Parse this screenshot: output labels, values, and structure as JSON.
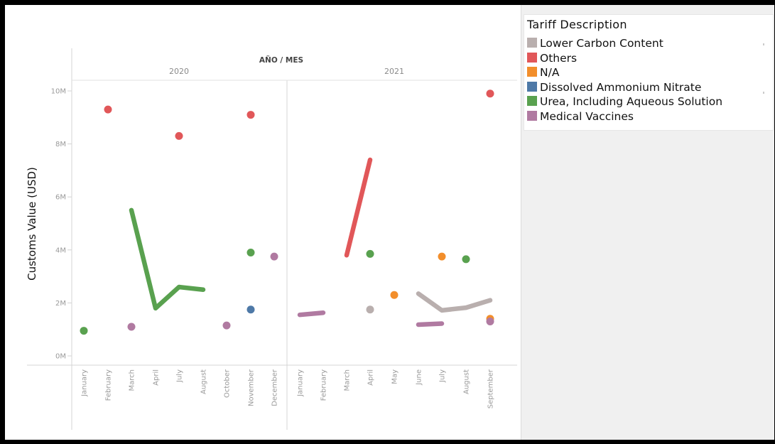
{
  "chart_data": {
    "type": "line",
    "header_label": "AÑO / MES",
    "years": [
      "2020",
      "2021"
    ],
    "categories_2020": [
      "January",
      "February",
      "March",
      "April",
      "July",
      "August",
      "October",
      "November",
      "December"
    ],
    "categories_2021": [
      "January",
      "February",
      "March",
      "April",
      "May",
      "June",
      "July",
      "August",
      "September"
    ],
    "ylabel": "Customs Value (USD)",
    "ylim": [
      0,
      11000000
    ],
    "yticks": [
      0,
      2000000,
      4000000,
      6000000,
      8000000,
      10000000
    ],
    "ytick_labels": [
      "0M",
      "2M",
      "4M",
      "6M",
      "8M",
      "10M"
    ],
    "grid": false,
    "legend_position": "top-right",
    "legend_title": "Tariff Description",
    "series": [
      {
        "name": "Lower Carbon Content",
        "color": "#b9afae",
        "points": [
          {
            "year": "2021",
            "month": "April",
            "value": 1750000
          },
          {
            "year": "2021",
            "month": "June",
            "value": 2350000
          },
          {
            "year": "2021",
            "month": "July",
            "value": 1720000
          },
          {
            "year": "2021",
            "month": "August",
            "value": 1820000
          },
          {
            "year": "2021",
            "month": "September",
            "value": 2100000
          }
        ]
      },
      {
        "name": "Others",
        "color": "#e15759",
        "points": [
          {
            "year": "2020",
            "month": "February",
            "value": 9300000
          },
          {
            "year": "2020",
            "month": "July",
            "value": 8300000
          },
          {
            "year": "2020",
            "month": "November",
            "value": 9100000
          },
          {
            "year": "2021",
            "month": "March",
            "value": 3800000
          },
          {
            "year": "2021",
            "month": "April",
            "value": 7400000
          },
          {
            "year": "2021",
            "month": "September",
            "value": 9900000
          }
        ]
      },
      {
        "name": "N/A",
        "color": "#f28e2b",
        "points": [
          {
            "year": "2021",
            "month": "May",
            "value": 2300000
          },
          {
            "year": "2021",
            "month": "July",
            "value": 3750000
          },
          {
            "year": "2021",
            "month": "September",
            "value": 1400000
          }
        ]
      },
      {
        "name": "Dissolved Ammonium Nitrate",
        "color": "#4e79a7",
        "points": [
          {
            "year": "2020",
            "month": "November",
            "value": 1750000
          }
        ]
      },
      {
        "name": "Urea, Including Aqueous Solution",
        "color": "#59a14f",
        "points": [
          {
            "year": "2020",
            "month": "January",
            "value": 950000
          },
          {
            "year": "2020",
            "month": "March",
            "value": 5500000
          },
          {
            "year": "2020",
            "month": "April",
            "value": 1800000
          },
          {
            "year": "2020",
            "month": "July",
            "value": 2600000
          },
          {
            "year": "2020",
            "month": "August",
            "value": 2500000
          },
          {
            "year": "2020",
            "month": "November",
            "value": 3900000
          },
          {
            "year": "2021",
            "month": "April",
            "value": 3850000
          },
          {
            "year": "2021",
            "month": "August",
            "value": 3650000
          }
        ]
      },
      {
        "name": "Medical Vaccines",
        "color": "#b07aa1",
        "points": [
          {
            "year": "2020",
            "month": "March",
            "value": 1100000
          },
          {
            "year": "2020",
            "month": "October",
            "value": 1150000
          },
          {
            "year": "2020",
            "month": "December",
            "value": 3750000
          },
          {
            "year": "2021",
            "month": "January",
            "value": 1550000
          },
          {
            "year": "2021",
            "month": "February",
            "value": 1630000
          },
          {
            "year": "2021",
            "month": "June",
            "value": 1180000
          },
          {
            "year": "2021",
            "month": "July",
            "value": 1220000
          },
          {
            "year": "2021",
            "month": "September",
            "value": 1300000
          }
        ]
      }
    ]
  }
}
